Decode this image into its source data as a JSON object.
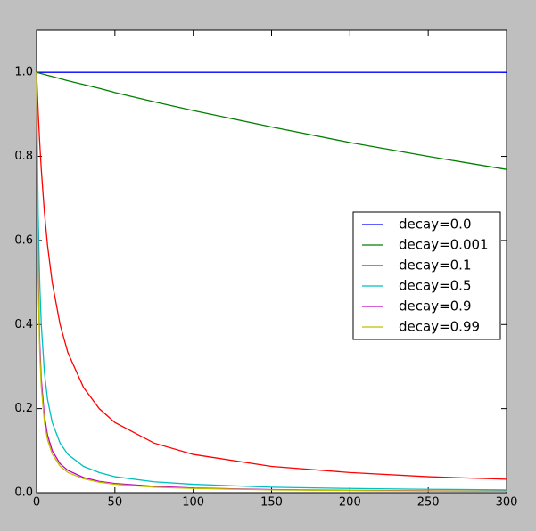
{
  "chart_data": {
    "type": "line",
    "x": [
      0,
      1,
      2,
      3,
      5,
      7,
      10,
      15,
      20,
      30,
      40,
      50,
      75,
      100,
      150,
      200,
      250,
      300
    ],
    "series": [
      {
        "name": "decay=0.0",
        "color": "#0000ff",
        "values": [
          1,
          1,
          1,
          1,
          1,
          1,
          1,
          1,
          1,
          1,
          1,
          1,
          1,
          1,
          1,
          1,
          1,
          1
        ]
      },
      {
        "name": "decay=0.001",
        "color": "#008000",
        "values": [
          1,
          0.999,
          0.998,
          0.997,
          0.995,
          0.993,
          0.99,
          0.985,
          0.98,
          0.971,
          0.962,
          0.952,
          0.93,
          0.909,
          0.87,
          0.833,
          0.8,
          0.769
        ]
      },
      {
        "name": "decay=0.1",
        "color": "#ff0000",
        "values": [
          1,
          0.909,
          0.833,
          0.769,
          0.667,
          0.588,
          0.5,
          0.4,
          0.333,
          0.25,
          0.2,
          0.167,
          0.118,
          0.091,
          0.0625,
          0.048,
          0.038,
          0.032
        ]
      },
      {
        "name": "decay=0.5",
        "color": "#00bfbf",
        "values": [
          1,
          0.667,
          0.5,
          0.4,
          0.286,
          0.222,
          0.167,
          0.118,
          0.091,
          0.0625,
          0.048,
          0.038,
          0.026,
          0.02,
          0.013,
          0.01,
          0.008,
          0.0066
        ]
      },
      {
        "name": "decay=0.9",
        "color": "#bf00bf",
        "values": [
          1,
          0.526,
          0.357,
          0.27,
          0.182,
          0.137,
          0.1,
          0.069,
          0.053,
          0.036,
          0.027,
          0.022,
          0.015,
          0.011,
          0.0074,
          0.0055,
          0.0044,
          0.0037
        ]
      },
      {
        "name": "decay=0.99",
        "color": "#bfbf00",
        "values": [
          1,
          0.503,
          0.336,
          0.252,
          0.168,
          0.126,
          0.092,
          0.063,
          0.048,
          0.033,
          0.025,
          0.02,
          0.013,
          0.01,
          0.0067,
          0.005,
          0.004,
          0.0034
        ]
      }
    ],
    "xlim": [
      0,
      300
    ],
    "xticks": [
      0,
      50,
      100,
      150,
      200,
      250,
      300
    ],
    "ylim": [
      0,
      1.1
    ],
    "yticks": [
      {
        "value": 0,
        "label": "0.0"
      },
      0.2,
      0.4,
      0.6,
      0.8,
      {
        "value": 1,
        "label": "1.0"
      }
    ],
    "legend": "right",
    "grid": false
  }
}
